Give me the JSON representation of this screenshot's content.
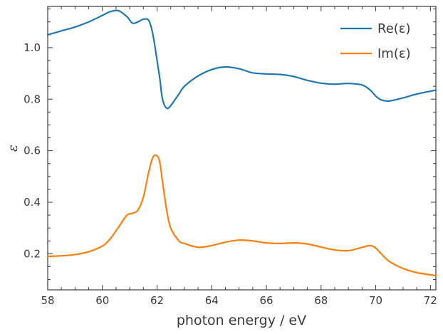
{
  "chart_data": {
    "type": "line",
    "xlabel": "photon energy / eV",
    "ylabel": "ε",
    "xlim": [
      58,
      72.2
    ],
    "ylim": [
      0.06,
      1.16
    ],
    "x_ticks": [
      "58",
      "60",
      "62",
      "64",
      "66",
      "68",
      "70",
      "72"
    ],
    "y_ticks": [
      "0.2",
      "0.4",
      "0.6",
      "0.8",
      "1.0"
    ],
    "grid": false,
    "legend_position": "top-right",
    "colors": {
      "Re(ε)": "#1f77b4",
      "Im(ε)": "#ff7f0e"
    },
    "series": [
      {
        "name": "Re(ε)",
        "x": [
          58.0,
          58.5,
          59.0,
          59.5,
          60.0,
          60.3,
          60.6,
          60.9,
          61.1,
          61.3,
          61.5,
          61.7,
          61.85,
          62.0,
          62.1,
          62.2,
          62.35,
          62.5,
          62.8,
          63.0,
          63.5,
          64.0,
          64.5,
          65.0,
          65.5,
          66.0,
          66.5,
          67.0,
          67.5,
          68.0,
          68.5,
          69.0,
          69.5,
          69.8,
          70.0,
          70.2,
          70.5,
          71.0,
          71.5,
          72.2
        ],
        "y": [
          1.05,
          1.065,
          1.08,
          1.1,
          1.125,
          1.14,
          1.143,
          1.12,
          1.095,
          1.1,
          1.11,
          1.105,
          1.05,
          0.95,
          0.88,
          0.8,
          0.765,
          0.775,
          0.82,
          0.85,
          0.89,
          0.915,
          0.925,
          0.918,
          0.902,
          0.898,
          0.896,
          0.888,
          0.873,
          0.862,
          0.858,
          0.861,
          0.855,
          0.835,
          0.812,
          0.797,
          0.793,
          0.805,
          0.82,
          0.835
        ]
      },
      {
        "name": "Im(ε)",
        "x": [
          58.0,
          58.5,
          59.0,
          59.5,
          60.0,
          60.3,
          60.6,
          60.9,
          61.1,
          61.3,
          61.5,
          61.7,
          61.85,
          62.0,
          62.1,
          62.2,
          62.35,
          62.5,
          62.8,
          63.0,
          63.5,
          64.0,
          64.5,
          65.0,
          65.5,
          66.0,
          66.5,
          67.0,
          67.5,
          68.0,
          68.5,
          69.0,
          69.5,
          69.8,
          70.0,
          70.2,
          70.5,
          71.0,
          71.5,
          72.2
        ],
        "y": [
          0.19,
          0.192,
          0.197,
          0.208,
          0.23,
          0.26,
          0.305,
          0.35,
          0.357,
          0.37,
          0.42,
          0.52,
          0.575,
          0.58,
          0.555,
          0.48,
          0.37,
          0.3,
          0.25,
          0.24,
          0.225,
          0.232,
          0.245,
          0.253,
          0.25,
          0.242,
          0.24,
          0.242,
          0.238,
          0.226,
          0.215,
          0.212,
          0.225,
          0.232,
          0.222,
          0.2,
          0.17,
          0.143,
          0.127,
          0.115
        ]
      }
    ]
  }
}
